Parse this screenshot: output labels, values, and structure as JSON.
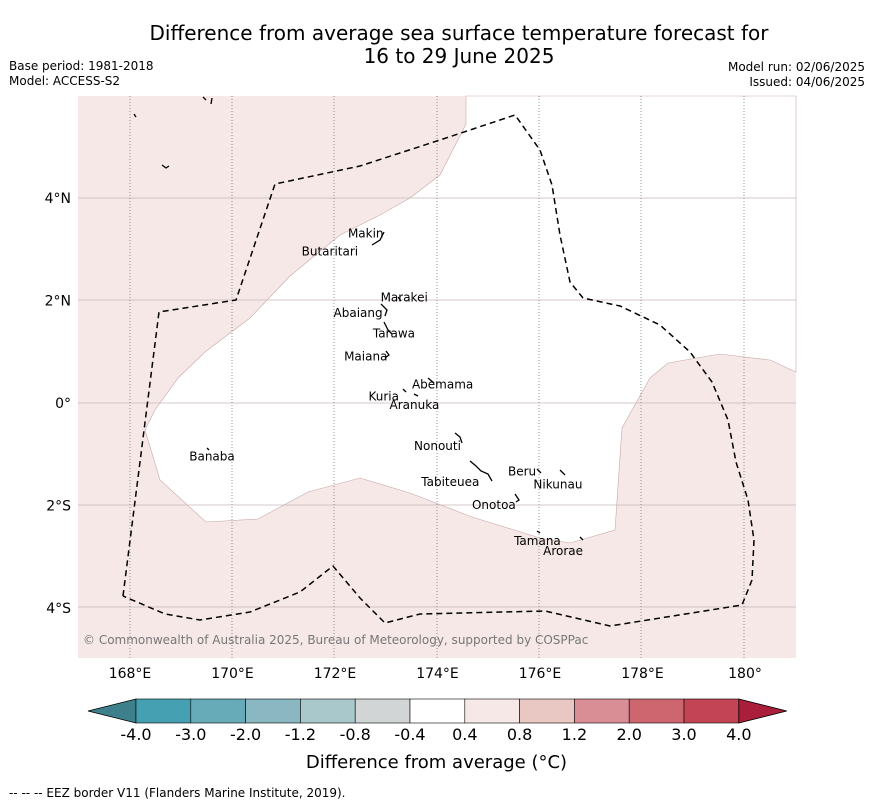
{
  "title": {
    "line1": "Difference from average sea surface temperature forecast for",
    "line2": "16 to 29 June 2025"
  },
  "meta": {
    "base_period": "Base period: 1981-2018",
    "model": "Model: ACCESS-S2",
    "model_run": "Model run: 02/06/2025",
    "issued": "Issued: 04/06/2025"
  },
  "map": {
    "lon_range": [
      167,
      181
    ],
    "lat_range": [
      -5,
      6
    ],
    "x_ticks": [
      "168°E",
      "170°E",
      "172°E",
      "174°E",
      "176°E",
      "178°E",
      "180°"
    ],
    "y_ticks": [
      "4°N",
      "2°N",
      "0°",
      "2°S",
      "4°S"
    ],
    "credit": "© Commonwealth of Australia 2025, Bureau of Meteorology, supported by COSPPac",
    "places": [
      {
        "name": "Makin",
        "lon": 172.6,
        "lat": 3.3
      },
      {
        "name": "Butaritari",
        "lon": 171.9,
        "lat": 2.95
      },
      {
        "name": "Marakei",
        "lon": 173.35,
        "lat": 2.05
      },
      {
        "name": "Abaiang",
        "lon": 172.45,
        "lat": 1.75
      },
      {
        "name": "Tarawa",
        "lon": 173.15,
        "lat": 1.35
      },
      {
        "name": "Maiana",
        "lon": 172.6,
        "lat": 0.9
      },
      {
        "name": "Abemama",
        "lon": 174.1,
        "lat": 0.35
      },
      {
        "name": "Kuria",
        "lon": 172.95,
        "lat": 0.12
      },
      {
        "name": "Aranuka",
        "lon": 173.55,
        "lat": -0.05
      },
      {
        "name": "Banaba",
        "lon": 169.6,
        "lat": -1.05
      },
      {
        "name": "Nonouti",
        "lon": 174.0,
        "lat": -0.85
      },
      {
        "name": "Tabiteuea",
        "lon": 174.25,
        "lat": -1.55
      },
      {
        "name": "Beru",
        "lon": 175.65,
        "lat": -1.35
      },
      {
        "name": "Nikunau",
        "lon": 176.35,
        "lat": -1.6
      },
      {
        "name": "Onotoa",
        "lon": 175.1,
        "lat": -2.0
      },
      {
        "name": "Tamana",
        "lon": 175.95,
        "lat": -2.7
      },
      {
        "name": "Arorae",
        "lon": 176.45,
        "lat": -2.9
      }
    ]
  },
  "colorbar": {
    "title": "Difference from average (°C)",
    "tick_labels": [
      "-4.0",
      "-3.0",
      "-2.0",
      "-1.2",
      "-0.8",
      "-0.4",
      "0.4",
      "0.8",
      "1.2",
      "2.0",
      "3.0",
      "4.0"
    ],
    "colors": [
      "#3d808b",
      "#45a1b1",
      "#67abb9",
      "#8ab7c1",
      "#a9c8cc",
      "#d2d5d6",
      "#ffffff",
      "#f5e8e7",
      "#e9c7c3",
      "#d98e95",
      "#ce6670",
      "#c34454",
      "#a91e3b"
    ]
  },
  "colors": {
    "warm_fill": "#f5e8e7",
    "grid": "#c9b8b9"
  },
  "footer": "--  --  -- EEZ border V11 (Flanders Marine Institute, 2019)."
}
